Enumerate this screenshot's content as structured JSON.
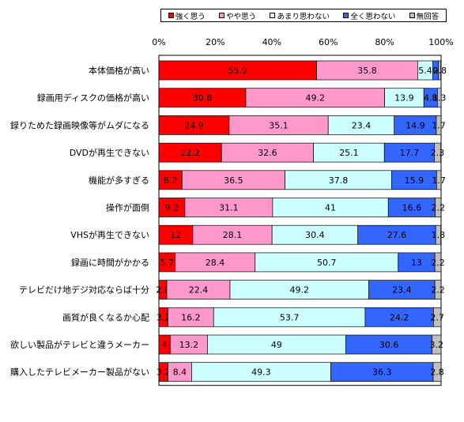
{
  "chart_data": {
    "type": "bar",
    "stacked": true,
    "orientation": "horizontal",
    "categories": [
      "本体価格が高い",
      "録画用ディスクの価格が高い",
      "録りためた録画映像等がムダになる",
      "DVDが再生できない",
      "機能が多すぎる",
      "操作が面倒",
      "VHSが再生できない",
      "録画に時間がかかる",
      "テレビだけ地デジ対応ならば十分",
      "画質が良くなるか心配",
      "欲しい製品がテレビと違うメーカー",
      "購入したテレビメーカー製品がない"
    ],
    "series": [
      {
        "name": "強く思う",
        "color": "#ff0000",
        "values": [
          55.9,
          30.8,
          24.9,
          22.2,
          8.2,
          9.2,
          12,
          5.7,
          2.8,
          3.2,
          4,
          3.2
        ],
        "labels": [
          "55.9",
          "30.8",
          "24.9",
          "22.2",
          "8.2",
          "9.2",
          "12",
          "5.7",
          "2.8",
          "3.2",
          "4",
          "3.2"
        ]
      },
      {
        "name": "やや思う",
        "color": "#ff99cc",
        "values": [
          35.8,
          49.2,
          35.1,
          32.6,
          36.5,
          31.1,
          28.1,
          28.4,
          22.4,
          16.2,
          13.2,
          8.4
        ],
        "labels": [
          "35.8",
          "49.2",
          "35.1",
          "32.6",
          "36.5",
          "31.1",
          "28.1",
          "28.4",
          "22.4",
          "16.2",
          "13.2",
          "8.4"
        ]
      },
      {
        "name": "あまり思わない",
        "color": "#ccffff",
        "values": [
          5.4,
          13.9,
          23.4,
          25.1,
          37.8,
          41,
          30.4,
          50.7,
          49.2,
          53.7,
          49,
          49.3
        ],
        "labels": [
          "5.4",
          "13.9",
          "23.4",
          "25.1",
          "37.8",
          "41",
          "30.4",
          "50.7",
          "49.2",
          "53.7",
          "49",
          "49.3"
        ]
      },
      {
        "name": "全く思わない",
        "color": "#3366ff",
        "values": [
          2,
          4.8,
          14.9,
          17.7,
          15.9,
          16.6,
          27.6,
          13,
          23.4,
          24.2,
          30.6,
          36.3
        ],
        "labels": [
          "2",
          "4.8",
          "14.9",
          "17.7",
          "15.9",
          "16.6",
          "27.6",
          "13",
          "23.4",
          "24.2",
          "30.6",
          "36.3"
        ]
      },
      {
        "name": "無回答",
        "color": "#c0c0c0",
        "values": [
          0.8,
          1.3,
          1.7,
          2.3,
          1.7,
          2.2,
          1.8,
          2.2,
          2.2,
          2.7,
          3.2,
          2.8
        ],
        "labels": [
          "0.8",
          "1.3",
          "1.7",
          "2.3",
          "1.7",
          "2.2",
          "1.8",
          "2.2",
          "2.2",
          "2.7",
          "3.2",
          "2.8"
        ]
      }
    ],
    "xlim": [
      0,
      100
    ],
    "xticks": [
      "0%",
      "20%",
      "40%",
      "60%",
      "80%",
      "100%"
    ],
    "legend": "top",
    "grid": false
  }
}
